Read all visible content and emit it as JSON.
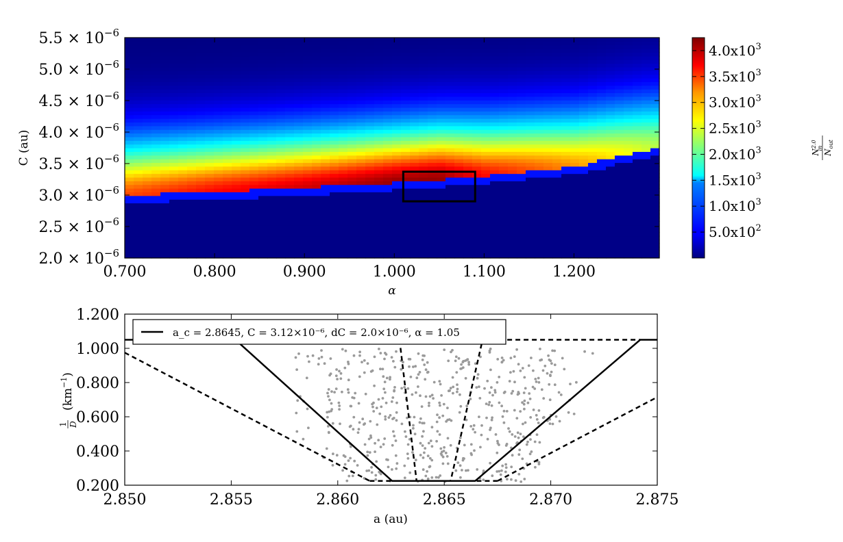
{
  "chart_data": [
    {
      "type": "heatmap",
      "xlabel": "α",
      "ylabel": "C (au)",
      "xlim": [
        0.7,
        1.295
      ],
      "ylim": [
        2e-06,
        5.5e-06
      ],
      "x_ticks": [
        {
          "v": 0.7,
          "label": "0.700"
        },
        {
          "v": 0.8,
          "label": "0.800"
        },
        {
          "v": 0.9,
          "label": "0.900"
        },
        {
          "v": 1.0,
          "label": "1.000"
        },
        {
          "v": 1.1,
          "label": "1.100"
        },
        {
          "v": 1.2,
          "label": "1.200"
        }
      ],
      "y_ticks": [
        {
          "v": 2e-06,
          "mant": "2.0"
        },
        {
          "v": 2.5e-06,
          "mant": "2.5"
        },
        {
          "v": 3e-06,
          "mant": "3.0"
        },
        {
          "v": 3.5e-06,
          "mant": "3.5"
        },
        {
          "v": 4e-06,
          "mant": "4.0"
        },
        {
          "v": 4.5e-06,
          "mant": "4.5"
        },
        {
          "v": 5e-06,
          "mant": "5.0"
        },
        {
          "v": 5.5e-06,
          "mant": "5.5"
        }
      ],
      "tick_exponent": "−6",
      "colorbar": {
        "label": "N_in^2.0 / N_out",
        "range": [
          0,
          4250
        ],
        "ticks": [
          {
            "v": 500,
            "mant": "5.0",
            "exp": "2"
          },
          {
            "v": 1000,
            "mant": "1.0",
            "exp": "3"
          },
          {
            "v": 1500,
            "mant": "1.5",
            "exp": "3"
          },
          {
            "v": 2000,
            "mant": "2.0",
            "exp": "3"
          },
          {
            "v": 2500,
            "mant": "2.5",
            "exp": "3"
          },
          {
            "v": 3000,
            "mant": "3.0",
            "exp": "3"
          },
          {
            "v": 3500,
            "mant": "3.5",
            "exp": "3"
          },
          {
            "v": 4000,
            "mant": "4.0",
            "exp": "3"
          }
        ]
      },
      "ridge": {
        "peak_alpha": [
          0.7,
          0.8,
          0.9,
          1.0,
          1.05,
          1.1,
          1.2,
          1.295
        ],
        "peak_C_e6": [
          3.0,
          3.05,
          3.12,
          3.2,
          3.25,
          3.3,
          3.45,
          3.75
        ],
        "peak_value": [
          3400,
          3700,
          3900,
          4150,
          4150,
          3700,
          3100,
          2350
        ]
      },
      "highlight_box": {
        "alpha": [
          1.01,
          1.09
        ],
        "C_e6": [
          2.9,
          3.37
        ]
      }
    },
    {
      "type": "scatter",
      "xlabel": "a (au)",
      "ylabel": "1/D (km⁻¹)",
      "xlim": [
        2.85,
        2.875
      ],
      "ylim": [
        0.2,
        1.2
      ],
      "x_ticks": [
        "2.850",
        "2.855",
        "2.860",
        "2.865",
        "2.870",
        "2.875"
      ],
      "y_ticks": [
        "0.200",
        "0.400",
        "0.600",
        "0.800",
        "1.000",
        "1.200"
      ],
      "legend": "a_c = 2.8645, C = 3.12×10⁻⁶, dC = 2.0×10⁻⁶, α = 1.05",
      "solid_curve": [
        [
          2.85,
          1.05
        ],
        [
          2.8552,
          1.05
        ],
        [
          2.86255,
          0.225
        ],
        [
          2.86645,
          0.225
        ],
        [
          2.8742,
          1.05
        ],
        [
          2.875,
          1.05
        ]
      ],
      "dashed_inner": [
        [
          2.8629,
          1.05
        ],
        [
          2.8637,
          0.225
        ],
        [
          2.8653,
          0.225
        ],
        [
          2.8668,
          1.05
        ]
      ],
      "dashed_outer_left": [
        [
          2.85,
          0.975
        ],
        [
          2.8615,
          0.225
        ]
      ],
      "dashed_outer_right": [
        [
          2.8675,
          0.225
        ],
        [
          2.875,
          0.715
        ]
      ],
      "dashed_top_right": [
        [
          2.8668,
          1.05
        ],
        [
          2.8742,
          1.05
        ]
      ],
      "points_approx": {
        "count": 560,
        "a_range": [
          2.858,
          2.8725
        ],
        "inv_D_range": [
          0.22,
          1.0
        ],
        "color": "#9a9a9a"
      }
    }
  ]
}
